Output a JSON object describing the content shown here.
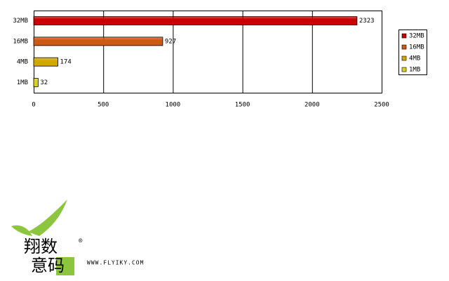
{
  "chart_data": {
    "type": "hbar",
    "categories": [
      "32MB",
      "16MB",
      "4MB",
      "1MB"
    ],
    "values": [
      2323,
      927,
      174,
      32
    ],
    "colors": [
      "#c80000",
      "#cc5a14",
      "#d2a800",
      "#dcd024"
    ],
    "xlim": [
      0,
      2500
    ],
    "xticks": [
      0,
      500,
      1000,
      1500,
      2000,
      2500
    ],
    "grid": true,
    "legend": "right"
  },
  "logo": {
    "line1": "翔数",
    "line2": "意码",
    "mark": "®",
    "url": "WWW.FLYIKY.COM"
  }
}
